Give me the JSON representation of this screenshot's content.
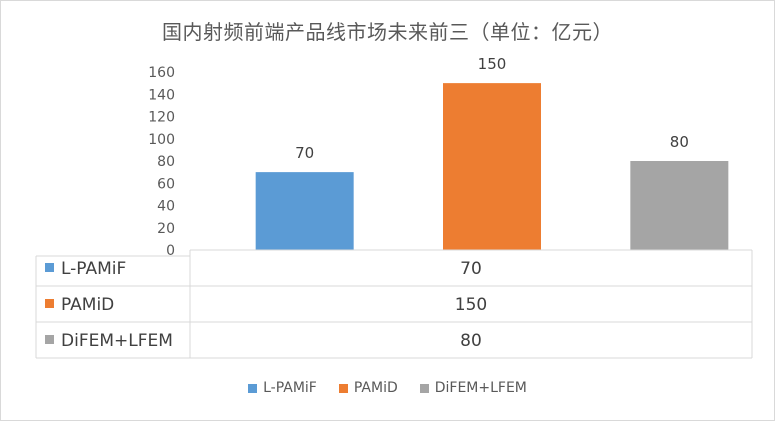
{
  "chart_data": {
    "type": "bar",
    "title": "国内射频前端产品线市场未来前三（单位：亿元）",
    "series": [
      {
        "name": "L-PAMiF",
        "value": 70,
        "color": "#5b9bd5"
      },
      {
        "name": "PAMiD",
        "value": 150,
        "color": "#ed7d31"
      },
      {
        "name": "DiFEM+LFEM",
        "value": 80,
        "color": "#a5a5a5"
      }
    ],
    "ylim": [
      0,
      160
    ],
    "yticks": [
      "0",
      "20",
      "40",
      "60",
      "80",
      "100",
      "120",
      "140",
      "160"
    ],
    "grid": false,
    "data_table": true,
    "legend": "bottom"
  }
}
